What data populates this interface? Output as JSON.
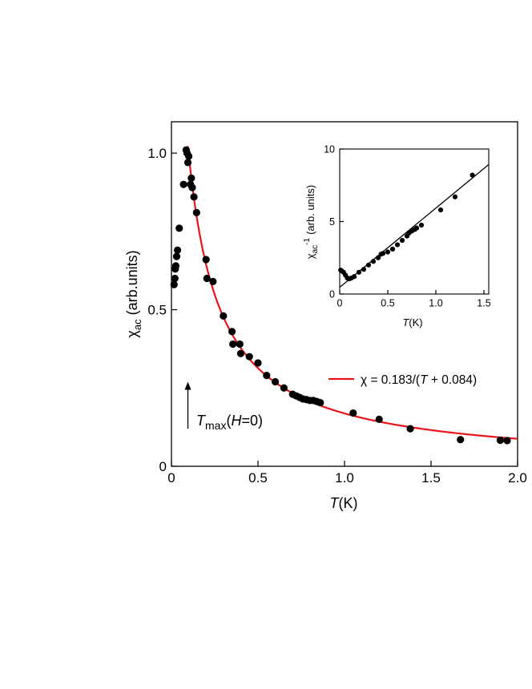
{
  "chart_data": [
    {
      "type": "scatter",
      "xlabel": "T",
      "xlabel_unit": "(K)",
      "ylabel": "χ",
      "ylabel_sub": "ac",
      "ylabel_unit": "(arb.units)",
      "xlim": [
        0,
        2.0
      ],
      "ylim": [
        0,
        1.1
      ],
      "xticks": [
        "0",
        "0.5",
        "1.0",
        "1.5",
        "2.0"
      ],
      "xtick_values": [
        0,
        0.5,
        1.0,
        1.5,
        2.0
      ],
      "yticks": [
        "0",
        "0.5",
        "1.0"
      ],
      "ytick_values": [
        0,
        0.5,
        1.0
      ],
      "grid": false,
      "point_color": "#000000",
      "series": [
        {
          "points": [
            [
              0.015,
              0.58
            ],
            [
              0.02,
              0.6
            ],
            [
              0.022,
              0.63
            ],
            [
              0.025,
              0.64
            ],
            [
              0.03,
              0.67
            ],
            [
              0.035,
              0.69
            ],
            [
              0.045,
              0.76
            ],
            [
              0.07,
              0.9
            ],
            [
              0.085,
              1.01
            ],
            [
              0.09,
              1.0
            ],
            [
              0.095,
              0.97
            ],
            [
              0.1,
              0.99
            ],
            [
              0.11,
              0.9
            ],
            [
              0.115,
              0.92
            ],
            [
              0.12,
              0.89
            ],
            [
              0.13,
              0.86
            ],
            [
              0.145,
              0.81
            ],
            [
              0.2,
              0.66
            ],
            [
              0.205,
              0.6
            ],
            [
              0.24,
              0.59
            ],
            [
              0.3,
              0.48
            ],
            [
              0.35,
              0.43
            ],
            [
              0.355,
              0.39
            ],
            [
              0.395,
              0.39
            ],
            [
              0.4,
              0.36
            ],
            [
              0.45,
              0.35
            ],
            [
              0.5,
              0.33
            ],
            [
              0.55,
              0.29
            ],
            [
              0.6,
              0.27
            ],
            [
              0.65,
              0.25
            ],
            [
              0.7,
              0.23
            ],
            [
              0.72,
              0.225
            ],
            [
              0.74,
              0.22
            ],
            [
              0.76,
              0.215
            ],
            [
              0.78,
              0.213
            ],
            [
              0.8,
              0.21
            ],
            [
              0.82,
              0.21
            ],
            [
              0.84,
              0.207
            ],
            [
              0.86,
              0.203
            ],
            [
              1.05,
              0.17
            ],
            [
              1.2,
              0.15
            ],
            [
              1.38,
              0.12
            ],
            [
              1.67,
              0.085
            ],
            [
              1.9,
              0.083
            ],
            [
              1.94,
              0.082
            ]
          ]
        }
      ],
      "fit": {
        "label": "χ = 0.183/(T + 0.084)",
        "label_parts": [
          "χ = 0.183/(",
          "T",
          " + 0.084)"
        ],
        "color": "#e8141c",
        "a": 0.183,
        "b": 0.084,
        "x_range": [
          0.095,
          2.0
        ]
      },
      "annotation": {
        "label_main": "T",
        "label_sub": "max",
        "label_tail": "(H=0)",
        "label_tail_parts": [
          "(",
          "H",
          "=0)"
        ],
        "x": 0.095,
        "y_from": 0.12,
        "y_to": 0.27
      },
      "legend_placement": "right"
    },
    {
      "type": "scatter",
      "name_role": "inset",
      "xlabel": "T",
      "xlabel_unit": "(K)",
      "ylabel": "χ",
      "ylabel_sub": "ac",
      "ylabel_sup": "-1",
      "ylabel_unit": "(arb. units)",
      "xlim": [
        0,
        1.55
      ],
      "ylim": [
        0,
        10
      ],
      "xticks": [
        "0",
        "0.5",
        "1.0",
        "1.5"
      ],
      "xtick_values": [
        0,
        0.5,
        1.0,
        1.5
      ],
      "yticks": [
        "0",
        "5",
        "10"
      ],
      "ytick_values": [
        0,
        5,
        10
      ],
      "grid": false,
      "point_color": "#000000",
      "series": [
        {
          "points": [
            [
              0.01,
              1.65
            ],
            [
              0.02,
              1.6
            ],
            [
              0.04,
              1.5
            ],
            [
              0.06,
              1.3
            ],
            [
              0.08,
              1.1
            ],
            [
              0.1,
              1.05
            ],
            [
              0.12,
              1.1
            ],
            [
              0.15,
              1.2
            ],
            [
              0.2,
              1.5
            ],
            [
              0.25,
              1.7
            ],
            [
              0.3,
              2.0
            ],
            [
              0.35,
              2.25
            ],
            [
              0.4,
              2.5
            ],
            [
              0.43,
              2.75
            ],
            [
              0.45,
              2.8
            ],
            [
              0.5,
              2.9
            ],
            [
              0.55,
              3.1
            ],
            [
              0.6,
              3.4
            ],
            [
              0.65,
              3.7
            ],
            [
              0.7,
              4.0
            ],
            [
              0.72,
              4.2
            ],
            [
              0.75,
              4.35
            ],
            [
              0.78,
              4.45
            ],
            [
              0.8,
              4.55
            ],
            [
              0.85,
              4.75
            ],
            [
              1.05,
              5.8
            ],
            [
              1.2,
              6.7
            ],
            [
              1.38,
              8.2
            ]
          ]
        }
      ],
      "fit": {
        "color": "#000000",
        "line": [
          [
            0.0,
            0.46
          ],
          [
            1.55,
            8.93
          ]
        ]
      }
    }
  ]
}
